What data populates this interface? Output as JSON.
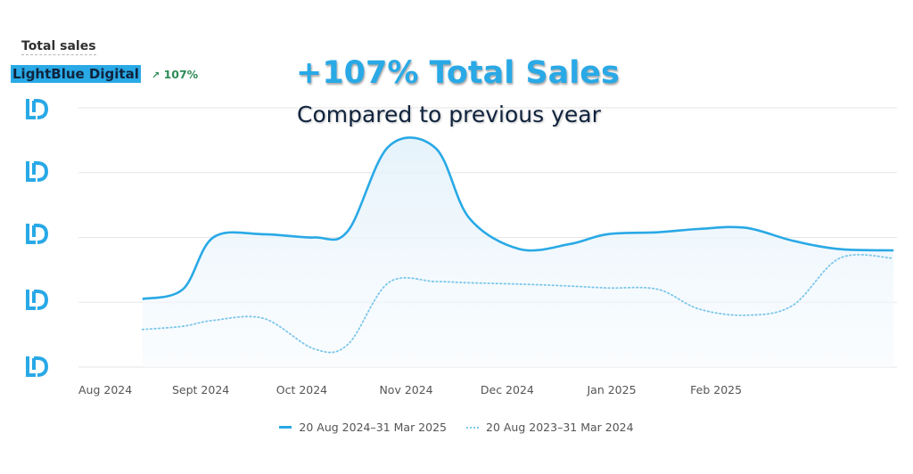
{
  "header": {
    "title": "Total sales"
  },
  "brand": {
    "name": "LightBlue Digital",
    "change_icon": "arrow-up-right-icon",
    "change": "107%",
    "change_color": "#2e8b57"
  },
  "overlay": {
    "headline": "+107% Total Sales",
    "subheadline": "Compared to previous year"
  },
  "colors": {
    "accent": "#29a9e6",
    "dark": "#10233d",
    "previous": "#7cc7ea"
  },
  "chart_data": {
    "type": "line",
    "title": "Total sales",
    "x_tick_labels": [
      "Aug 2024",
      "Sept 2024",
      "Oct 2024",
      "Nov 2024",
      "Dec 2024",
      "Jan 2025",
      "Feb 2025"
    ],
    "y_tick_labels": "logo-icon",
    "y_range": [
      0,
      4
    ],
    "grid": true,
    "legend_position": "bottom",
    "series": [
      {
        "name": "20 Aug 2024–31 Mar 2025",
        "style": "solid-area",
        "points": [
          {
            "x": "2024-08-20",
            "y": 1.05
          },
          {
            "x": "2024-09-01",
            "y": 1.2
          },
          {
            "x": "2024-09-10",
            "y": 2.0
          },
          {
            "x": "2024-09-25",
            "y": 2.05
          },
          {
            "x": "2024-10-10",
            "y": 2.0
          },
          {
            "x": "2024-10-20",
            "y": 2.1
          },
          {
            "x": "2024-11-01",
            "y": 3.4
          },
          {
            "x": "2024-11-15",
            "y": 3.38
          },
          {
            "x": "2024-11-25",
            "y": 2.3
          },
          {
            "x": "2024-12-10",
            "y": 1.82
          },
          {
            "x": "2024-12-25",
            "y": 1.9
          },
          {
            "x": "2025-01-05",
            "y": 2.05
          },
          {
            "x": "2025-01-20",
            "y": 2.08
          },
          {
            "x": "2025-02-01",
            "y": 2.13
          },
          {
            "x": "2025-02-15",
            "y": 2.15
          },
          {
            "x": "2025-03-01",
            "y": 1.95
          },
          {
            "x": "2025-03-15",
            "y": 1.82
          },
          {
            "x": "2025-03-31",
            "y": 1.8
          }
        ]
      },
      {
        "name": "20 Aug 2023–31 Mar 2024",
        "style": "dotted",
        "points": [
          {
            "x": "2024-08-20",
            "y": 0.58
          },
          {
            "x": "2024-09-01",
            "y": 0.63
          },
          {
            "x": "2024-09-10",
            "y": 0.72
          },
          {
            "x": "2024-09-25",
            "y": 0.75
          },
          {
            "x": "2024-10-10",
            "y": 0.28
          },
          {
            "x": "2024-10-20",
            "y": 0.35
          },
          {
            "x": "2024-11-01",
            "y": 1.3
          },
          {
            "x": "2024-11-15",
            "y": 1.32
          },
          {
            "x": "2024-11-25",
            "y": 1.3
          },
          {
            "x": "2024-12-10",
            "y": 1.28
          },
          {
            "x": "2024-12-25",
            "y": 1.25
          },
          {
            "x": "2025-01-05",
            "y": 1.22
          },
          {
            "x": "2025-01-20",
            "y": 1.2
          },
          {
            "x": "2025-02-01",
            "y": 0.9
          },
          {
            "x": "2025-02-15",
            "y": 0.8
          },
          {
            "x": "2025-03-01",
            "y": 0.95
          },
          {
            "x": "2025-03-15",
            "y": 1.68
          },
          {
            "x": "2025-03-31",
            "y": 1.68
          }
        ]
      }
    ]
  }
}
